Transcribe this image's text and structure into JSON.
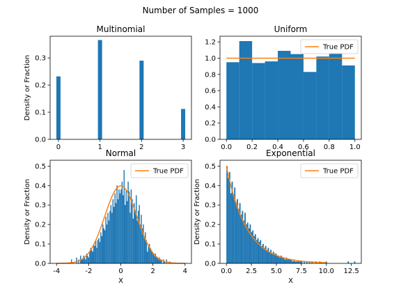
{
  "figure": {
    "suptitle": "Number of Samples = 1000"
  },
  "colors": {
    "hist": "#1f77b4",
    "pdf": "#ff7f0e",
    "axes": "#000000"
  },
  "chart_data": [
    {
      "type": "bar",
      "title": "Multinomial",
      "xlabel": "",
      "ylabel": "Density or Fraction",
      "xlim": [
        -0.2,
        3.2
      ],
      "ylim": [
        0,
        0.38
      ],
      "xticks": [
        0,
        1,
        2,
        3
      ],
      "yticks": [
        0.0,
        0.1,
        0.2,
        0.3
      ],
      "ytick_format": 1,
      "bar_width": 0.1,
      "bars": [
        {
          "x": 0,
          "value": 0.232
        },
        {
          "x": 1,
          "value": 0.366
        },
        {
          "x": 2,
          "value": 0.29
        },
        {
          "x": 3,
          "value": 0.112
        }
      ],
      "legend": null
    },
    {
      "type": "bar",
      "title": "Uniform",
      "xlabel": "",
      "ylabel": "",
      "xlim": [
        -0.05,
        1.05
      ],
      "ylim": [
        0,
        1.27
      ],
      "xticks": [
        0.0,
        0.2,
        0.4,
        0.6,
        0.8,
        1.0
      ],
      "yticks": [
        0.0,
        0.2,
        0.4,
        0.6,
        0.8,
        1.0,
        1.2
      ],
      "xtick_format": 1,
      "ytick_format": 1,
      "bin_edges": [
        0.0,
        0.1,
        0.2,
        0.3,
        0.4,
        0.5,
        0.6,
        0.7,
        0.8,
        0.9,
        1.0
      ],
      "values": [
        0.95,
        1.21,
        0.94,
        0.96,
        1.09,
        1.05,
        0.83,
        1.02,
        1.06,
        0.91
      ],
      "pdf": {
        "x": [
          0.0,
          1.0
        ],
        "y": [
          1.0,
          1.0
        ]
      },
      "legend": {
        "label": "True PDF",
        "position": "upper right"
      }
    },
    {
      "type": "bar",
      "title": "Normal",
      "xlabel": "X",
      "ylabel": "Density or Fraction",
      "xlim": [
        -4.4,
        4.4
      ],
      "ylim": [
        0,
        0.53
      ],
      "xticks": [
        -4,
        -2,
        0,
        2,
        4
      ],
      "yticks": [
        0.0,
        0.1,
        0.2,
        0.3,
        0.4,
        0.5
      ],
      "ytick_format": 1,
      "hist_range": [
        -3.1,
        3.2
      ],
      "bins": 100,
      "values": [
        0.02,
        0,
        0,
        0,
        0,
        0.03,
        0,
        0.02,
        0,
        0.04,
        0.02,
        0.02,
        0.04,
        0.03,
        0.02,
        0.05,
        0.04,
        0.03,
        0.06,
        0.08,
        0.07,
        0.06,
        0.1,
        0.09,
        0.12,
        0.08,
        0.12,
        0.13,
        0.11,
        0.16,
        0.14,
        0.2,
        0.18,
        0.17,
        0.24,
        0.2,
        0.26,
        0.22,
        0.27,
        0.3,
        0.26,
        0.33,
        0.29,
        0.36,
        0.31,
        0.4,
        0.33,
        0.38,
        0.36,
        0.38,
        0.42,
        0.35,
        0.48,
        0.3,
        0.38,
        0.32,
        0.42,
        0.37,
        0.26,
        0.38,
        0.33,
        0.23,
        0.31,
        0.27,
        0.35,
        0.22,
        0.27,
        0.3,
        0.2,
        0.25,
        0.18,
        0.2,
        0.13,
        0.16,
        0.12,
        0.06,
        0.09,
        0.1,
        0.08,
        0.07,
        0.06,
        0.05,
        0.04,
        0.05,
        0.03,
        0.03,
        0.02,
        0.03,
        0.02,
        0.02,
        0,
        0.02,
        0.01,
        0,
        0.02,
        0,
        0,
        0.01,
        0,
        0
      ],
      "pdf": {
        "type": "normal",
        "mean": 0,
        "std": 1,
        "x_range": [
          -4,
          4
        ]
      },
      "legend": {
        "label": "True PDF",
        "position": "upper right"
      }
    },
    {
      "type": "bar",
      "title": "Exponential",
      "xlabel": "X",
      "ylabel": "Density or Fraction",
      "xlim": [
        -0.64,
        13.5
      ],
      "ylim": [
        0,
        0.53
      ],
      "xticks": [
        0.0,
        2.5,
        5.0,
        7.5,
        10.0,
        12.5
      ],
      "yticks": [
        0.0,
        0.1,
        0.2,
        0.3,
        0.4,
        0.5
      ],
      "xtick_format": 1,
      "ytick_format": 1,
      "hist_range": [
        0,
        12.9
      ],
      "bins": 100,
      "values": [
        0.5,
        0.44,
        0.47,
        0.36,
        0.42,
        0.35,
        0.39,
        0.31,
        0.33,
        0.28,
        0.31,
        0.25,
        0.27,
        0.22,
        0.26,
        0.2,
        0.21,
        0.18,
        0.2,
        0.16,
        0.17,
        0.14,
        0.15,
        0.12,
        0.13,
        0.11,
        0.12,
        0.09,
        0.1,
        0.08,
        0.09,
        0.07,
        0.08,
        0.06,
        0.07,
        0.05,
        0.06,
        0.05,
        0.05,
        0.04,
        0.04,
        0.03,
        0.04,
        0.03,
        0.03,
        0.02,
        0.03,
        0.02,
        0.02,
        0.02,
        0.02,
        0.01,
        0.02,
        0.01,
        0.01,
        0.01,
        0.01,
        0.01,
        0.01,
        0,
        0.01,
        0,
        0.01,
        0,
        0.01,
        0,
        0.01,
        0,
        0,
        0.01,
        0,
        0,
        0.01,
        0,
        0,
        0,
        0,
        0.01,
        0,
        0,
        0,
        0,
        0,
        0,
        0,
        0,
        0,
        0,
        0,
        0,
        0,
        0,
        0,
        0,
        0.01,
        0,
        0,
        0,
        0,
        0.01
      ],
      "pdf": {
        "type": "exponential",
        "lambda": 0.5,
        "x_range": [
          0,
          10
        ]
      },
      "legend": {
        "label": "True PDF",
        "position": "upper right"
      }
    }
  ]
}
